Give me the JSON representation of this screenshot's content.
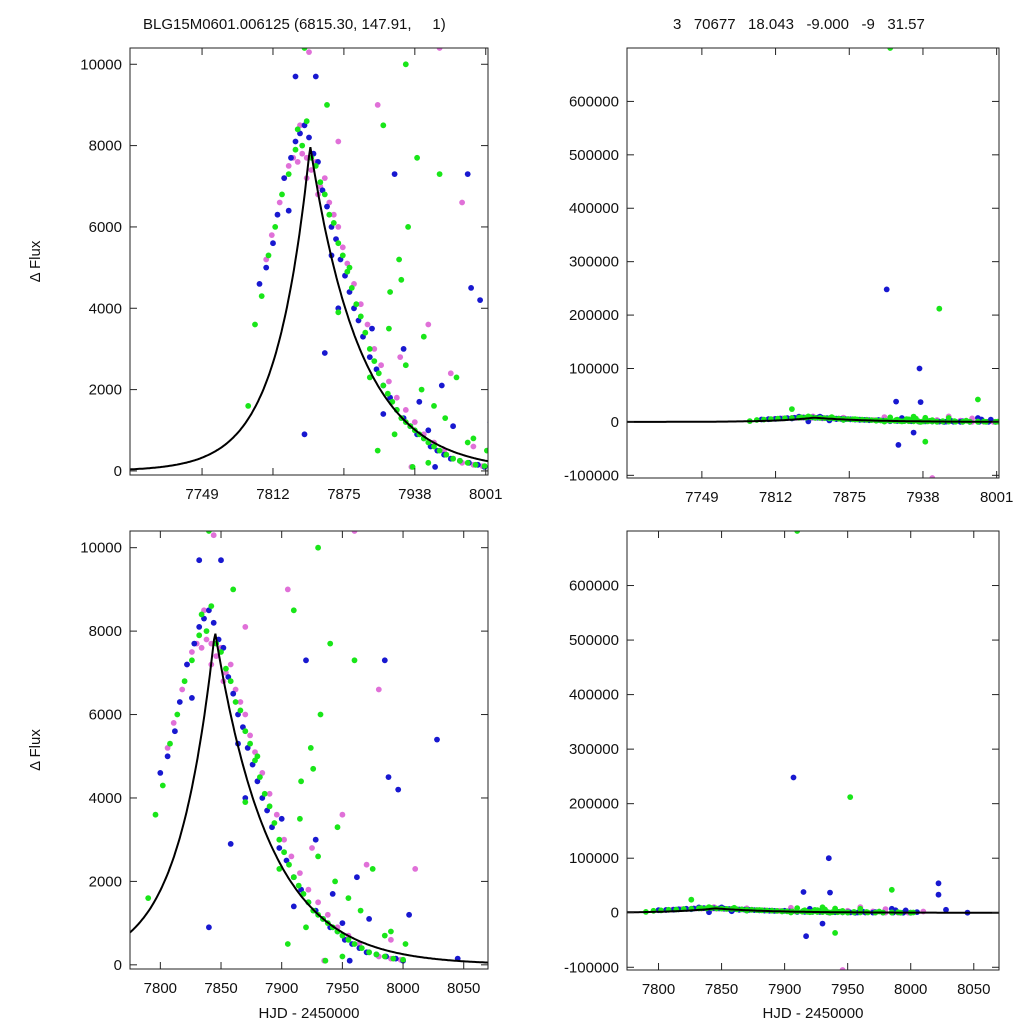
{
  "header": {
    "left_title": "BLG15M0601.006125 (6815.30, 147.91,     1)",
    "right_title": "3   70677   18.043   -9.000   -9   31.57"
  },
  "colors": {
    "series_a": "#e070d8",
    "series_b": "#1818d0",
    "series_c": "#19e619",
    "model": "#000000"
  },
  "chart_data": [
    {
      "id": "top-left",
      "type": "scatter",
      "ylabel": "Δ Flux",
      "xlabel": "",
      "xlim": [
        7685,
        8003
      ],
      "ylim": [
        -100,
        10400
      ],
      "xticks": [
        "7749",
        "7812",
        "7875",
        "7938",
        "8001"
      ],
      "yticks": [
        "0",
        "2000",
        "4000",
        "6000",
        "8000",
        "10000"
      ],
      "grid": false
    },
    {
      "id": "top-right",
      "type": "scatter",
      "ylabel": "",
      "xlabel": "",
      "xlim": [
        7685,
        8003
      ],
      "ylim": [
        -105000,
        700000
      ],
      "xticks": [
        "7749",
        "7812",
        "7875",
        "7938",
        "8001"
      ],
      "yticks": [
        "-100000",
        "0",
        "100000",
        "200000",
        "300000",
        "400000",
        "500000",
        "600000"
      ],
      "grid": false
    },
    {
      "id": "bottom-left",
      "type": "scatter",
      "ylabel": "Δ Flux",
      "xlabel": "HJD - 2450000",
      "xlim": [
        7775,
        8070
      ],
      "ylim": [
        -100,
        10400
      ],
      "xticks": [
        "7800",
        "7850",
        "7900",
        "7950",
        "8000",
        "8050"
      ],
      "yticks": [
        "0",
        "2000",
        "4000",
        "6000",
        "8000",
        "10000"
      ],
      "grid": false
    },
    {
      "id": "bottom-right",
      "type": "scatter",
      "ylabel": "",
      "xlabel": "HJD - 2450000",
      "xlim": [
        7775,
        8070
      ],
      "ylim": [
        -105000,
        700000
      ],
      "xticks": [
        "7800",
        "7850",
        "7900",
        "7950",
        "8000",
        "8050"
      ],
      "yticks": [
        "-100000",
        "0",
        "100000",
        "200000",
        "300000",
        "400000",
        "500000",
        "600000"
      ],
      "grid": false
    }
  ],
  "light_curve": {
    "model": {
      "peak_time": 7845,
      "peak_flux": 8000,
      "rise_scale": 30,
      "decay_scale": 45
    },
    "series": [
      {
        "color": "#e070d8",
        "points": [
          [
            7806,
            5200
          ],
          [
            7811,
            5800
          ],
          [
            7818,
            6600
          ],
          [
            7822,
            7200
          ],
          [
            7826,
            7500
          ],
          [
            7830,
            7700
          ],
          [
            7834,
            7600
          ],
          [
            7838,
            7800
          ],
          [
            7842,
            7700
          ],
          [
            7846,
            7400
          ],
          [
            7850,
            7600
          ],
          [
            7854,
            7000
          ],
          [
            7858,
            7200
          ],
          [
            7862,
            6600
          ],
          [
            7866,
            6300
          ],
          [
            7870,
            6000
          ],
          [
            7874,
            5500
          ],
          [
            7878,
            5100
          ],
          [
            7884,
            4600
          ],
          [
            7890,
            4100
          ],
          [
            7896,
            3600
          ],
          [
            7902,
            3000
          ],
          [
            7908,
            2600
          ],
          [
            7915,
            2200
          ],
          [
            7922,
            1800
          ],
          [
            7930,
            1500
          ],
          [
            7938,
            1200
          ],
          [
            7946,
            900
          ],
          [
            7955,
            700
          ],
          [
            7964,
            500
          ],
          [
            7972,
            300
          ],
          [
            7980,
            200
          ],
          [
            7990,
            150
          ],
          [
            7998,
            120
          ],
          [
            7844,
            10300
          ],
          [
            7905,
            9000
          ],
          [
            7960,
            10400
          ],
          [
            7980,
            6600
          ],
          [
            7950,
            3600
          ],
          [
            7925,
            2800
          ],
          [
            7970,
            2400
          ],
          [
            8010,
            2300
          ],
          [
            7870,
            8100
          ],
          [
            7836,
            8500
          ],
          [
            7842,
            7200
          ],
          [
            7852,
            6800
          ],
          [
            7990,
            600
          ],
          [
            7935,
            100
          ]
        ]
      },
      {
        "color": "#1818d0",
        "points": [
          [
            7800,
            4600
          ],
          [
            7806,
            5000
          ],
          [
            7812,
            5600
          ],
          [
            7816,
            6300
          ],
          [
            7822,
            7200
          ],
          [
            7828,
            7700
          ],
          [
            7832,
            8100
          ],
          [
            7836,
            8300
          ],
          [
            7840,
            8500
          ],
          [
            7844,
            8200
          ],
          [
            7848,
            7800
          ],
          [
            7852,
            7600
          ],
          [
            7856,
            6900
          ],
          [
            7860,
            6500
          ],
          [
            7864,
            6000
          ],
          [
            7868,
            5700
          ],
          [
            7872,
            5200
          ],
          [
            7876,
            4800
          ],
          [
            7880,
            4400
          ],
          [
            7884,
            4000
          ],
          [
            7888,
            3700
          ],
          [
            7892,
            3300
          ],
          [
            7898,
            2800
          ],
          [
            7904,
            2500
          ],
          [
            7910,
            2100
          ],
          [
            7916,
            1800
          ],
          [
            7922,
            1500
          ],
          [
            7928,
            1300
          ],
          [
            7934,
            1100
          ],
          [
            7940,
            900
          ],
          [
            7946,
            800
          ],
          [
            7952,
            600
          ],
          [
            7958,
            500
          ],
          [
            7964,
            400
          ],
          [
            7970,
            300
          ],
          [
            7978,
            250
          ],
          [
            7986,
            200
          ],
          [
            7994,
            150
          ],
          [
            8000,
            100
          ],
          [
            7832,
            9700
          ],
          [
            7850,
            9700
          ],
          [
            7920,
            7300
          ],
          [
            7985,
            7300
          ],
          [
            7988,
            4500
          ],
          [
            7928,
            3000
          ],
          [
            7900,
            3500
          ],
          [
            7870,
            4000
          ],
          [
            7996,
            4200
          ],
          [
            7840,
            900
          ],
          [
            7858,
            2900
          ],
          [
            7962,
            2100
          ],
          [
            8005,
            1200
          ],
          [
            7942,
            1700
          ],
          [
            7950,
            1000
          ],
          [
            7910,
            1400
          ],
          [
            7972,
            1100
          ],
          [
            8028,
            5400
          ],
          [
            7826,
            6400
          ],
          [
            7864,
            5300
          ],
          [
            7956,
            100
          ],
          [
            8045,
            150
          ]
        ]
      },
      {
        "color": "#19e619",
        "points": [
          [
            7790,
            1600
          ],
          [
            7796,
            3600
          ],
          [
            7802,
            4300
          ],
          [
            7808,
            5300
          ],
          [
            7814,
            6000
          ],
          [
            7820,
            6800
          ],
          [
            7826,
            7300
          ],
          [
            7832,
            7900
          ],
          [
            7838,
            8000
          ],
          [
            7842,
            8600
          ],
          [
            7846,
            7700
          ],
          [
            7850,
            7500
          ],
          [
            7854,
            7100
          ],
          [
            7858,
            6800
          ],
          [
            7862,
            6300
          ],
          [
            7866,
            6100
          ],
          [
            7870,
            5600
          ],
          [
            7874,
            5300
          ],
          [
            7878,
            4900
          ],
          [
            7882,
            4500
          ],
          [
            7886,
            4100
          ],
          [
            7890,
            3800
          ],
          [
            7894,
            3400
          ],
          [
            7898,
            3000
          ],
          [
            7902,
            2700
          ],
          [
            7906,
            2400
          ],
          [
            7910,
            2100
          ],
          [
            7914,
            1900
          ],
          [
            7918,
            1700
          ],
          [
            7922,
            1500
          ],
          [
            7926,
            1300
          ],
          [
            7930,
            1200
          ],
          [
            7934,
            1100
          ],
          [
            7938,
            1000
          ],
          [
            7942,
            900
          ],
          [
            7946,
            800
          ],
          [
            7950,
            700
          ],
          [
            7955,
            600
          ],
          [
            7960,
            500
          ],
          [
            7966,
            400
          ],
          [
            7972,
            300
          ],
          [
            7978,
            250
          ],
          [
            7985,
            200
          ],
          [
            7992,
            150
          ],
          [
            8000,
            120
          ],
          [
            7840,
            10400
          ],
          [
            7910,
            8500
          ],
          [
            7930,
            10000
          ],
          [
            7940,
            7700
          ],
          [
            7960,
            7300
          ],
          [
            7932,
            6000
          ],
          [
            7926,
            4700
          ],
          [
            7915,
            3500
          ],
          [
            7946,
            3300
          ],
          [
            7975,
            2300
          ],
          [
            7936,
            100
          ],
          [
            7950,
            200
          ],
          [
            7905,
            500
          ],
          [
            7920,
            900
          ],
          [
            7955,
            1600
          ],
          [
            7965,
            1300
          ],
          [
            7985,
            700
          ],
          [
            7930,
            2600
          ],
          [
            7944,
            2000
          ],
          [
            7880,
            5000
          ],
          [
            7860,
            9000
          ],
          [
            7834,
            8400
          ],
          [
            7870,
            3900
          ],
          [
            7898,
            2300
          ],
          [
            7990,
            800
          ],
          [
            8002,
            500
          ],
          [
            7916,
            4400
          ],
          [
            7924,
            5200
          ]
        ]
      }
    ],
    "outliers": [
      {
        "color": "#19e619",
        "x": 7910,
        "y": 700000
      },
      {
        "color": "#1818d0",
        "x": 7907,
        "y": 248000
      },
      {
        "color": "#19e619",
        "x": 7952,
        "y": 212000
      },
      {
        "color": "#1818d0",
        "x": 7935,
        "y": 100000
      },
      {
        "color": "#1818d0",
        "x": 7915,
        "y": 38000
      },
      {
        "color": "#1818d0",
        "x": 7936,
        "y": 37000
      },
      {
        "color": "#19e619",
        "x": 7985,
        "y": 42000
      },
      {
        "color": "#1818d0",
        "x": 8022,
        "y": 54000
      },
      {
        "color": "#1818d0",
        "x": 8022,
        "y": 33000
      },
      {
        "color": "#1818d0",
        "x": 7917,
        "y": -43000
      },
      {
        "color": "#19e619",
        "x": 7940,
        "y": -37000
      },
      {
        "color": "#e070d8",
        "x": 7946,
        "y": -105000
      },
      {
        "color": "#19e619",
        "x": 7826,
        "y": 24000
      },
      {
        "color": "#1818d0",
        "x": 7930,
        "y": -20000
      }
    ]
  }
}
